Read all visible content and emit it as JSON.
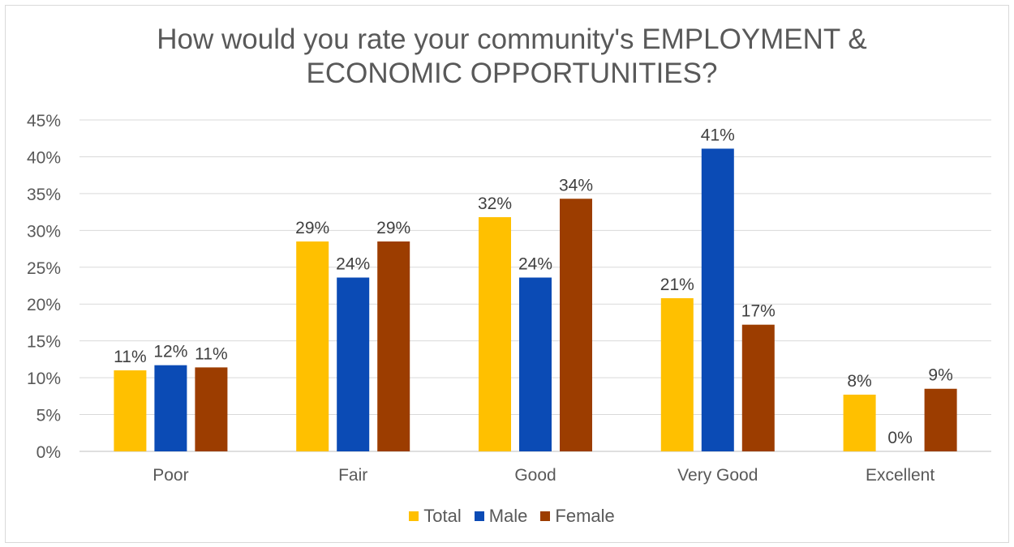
{
  "chart_data": {
    "type": "bar",
    "title_lines": [
      "How would you rate your community's EMPLOYMENT &",
      "ECONOMIC OPPORTUNITIES?"
    ],
    "categories": [
      "Poor",
      "Fair",
      "Good",
      "Very Good",
      "Excellent"
    ],
    "series": [
      {
        "name": "Total",
        "color": "#FFC000",
        "values": [
          11,
          28.5,
          31.8,
          20.8,
          7.7
        ],
        "labels": [
          "11%",
          "29%",
          "32%",
          "21%",
          "8%"
        ]
      },
      {
        "name": "Male",
        "color": "#0B4BB5",
        "values": [
          11.7,
          23.6,
          23.6,
          41.1,
          0
        ],
        "labels": [
          "12%",
          "24%",
          "24%",
          "41%",
          "0%"
        ]
      },
      {
        "name": "Female",
        "color": "#9C3D00",
        "values": [
          11.4,
          28.5,
          34.3,
          17.2,
          8.5
        ],
        "labels": [
          "11%",
          "29%",
          "34%",
          "17%",
          "9%"
        ]
      }
    ],
    "y_ticks": [
      "0%",
      "5%",
      "10%",
      "15%",
      "20%",
      "25%",
      "30%",
      "35%",
      "40%",
      "45%"
    ],
    "ylim": [
      0,
      45
    ],
    "grid": true,
    "legend_position": "bottom"
  }
}
